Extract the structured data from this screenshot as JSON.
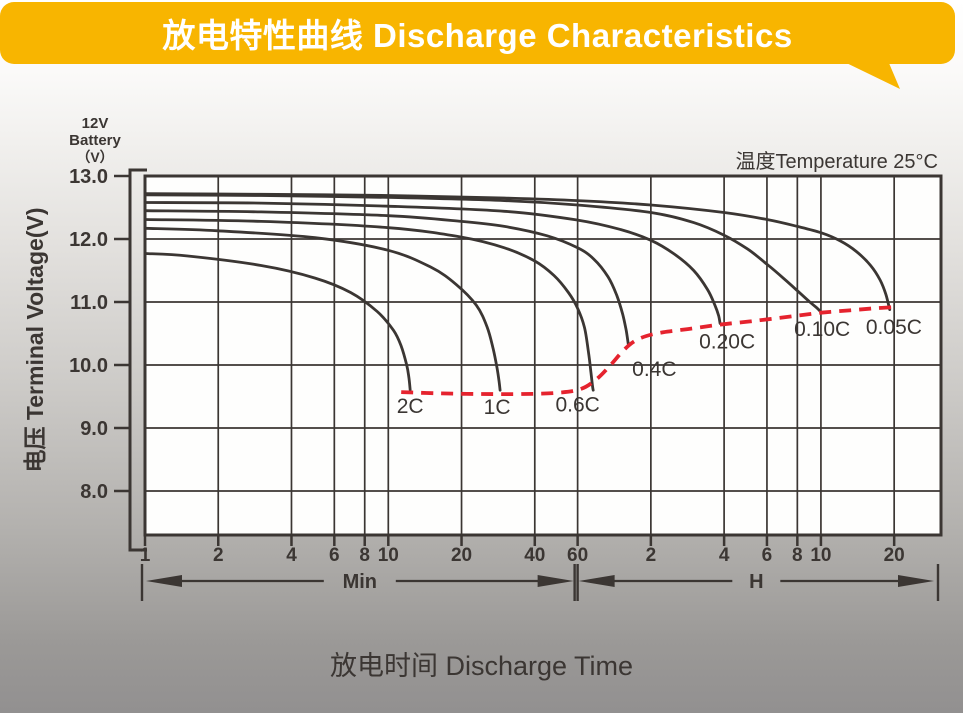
{
  "header": {
    "title": "放电特性曲线 Discharge Characteristics"
  },
  "chart": {
    "battery_label_lines": [
      "12V",
      "Battery",
      "（V）"
    ],
    "temperature_note": "温度Temperature 25°C",
    "y_axis_title": "电压 Terminal Voltage(V)",
    "x_axis_title": "放电时间 Discharge Time"
  },
  "colors": {
    "banner_yellow": "#F8B500",
    "curve_dark": "#3B3633",
    "cutoff_red": "#E5232E",
    "plot_background": "#FEFEFD",
    "text_dark": "#3B3633"
  },
  "chart_data": {
    "type": "line",
    "title": "放电特性曲线 Discharge Characteristics",
    "subtitle": "温度Temperature 25°C",
    "xlabel": "放电时间 Discharge Time",
    "ylabel": "电压 Terminal Voltage(V)",
    "x_scale": "log",
    "x_unit": "minutes",
    "x_range": [
      1,
      1870
    ],
    "y_range_top": 13.0,
    "y_range_bottom": 7.3,
    "grid": true,
    "x_unit_sections": [
      {
        "label": "Min",
        "from_minutes": 1,
        "to_minutes": 60
      },
      {
        "label": "H",
        "from_minutes": 60,
        "to_minutes": 1840
      }
    ],
    "x_ticks": [
      {
        "minutes": 1,
        "label": "1"
      },
      {
        "minutes": 2,
        "label": "2"
      },
      {
        "minutes": 4,
        "label": "4"
      },
      {
        "minutes": 6,
        "label": "6"
      },
      {
        "minutes": 8,
        "label": "8"
      },
      {
        "minutes": 10,
        "label": "10"
      },
      {
        "minutes": 20,
        "label": "20"
      },
      {
        "minutes": 40,
        "label": "40"
      },
      {
        "minutes": 60,
        "label": "60"
      },
      {
        "minutes": 120,
        "label": "2"
      },
      {
        "minutes": 240,
        "label": "4"
      },
      {
        "minutes": 360,
        "label": "6"
      },
      {
        "minutes": 480,
        "label": "8"
      },
      {
        "minutes": 600,
        "label": "10"
      },
      {
        "minutes": 1200,
        "label": "20"
      }
    ],
    "y_ticks": [
      {
        "value": 13.0,
        "label": "13.0"
      },
      {
        "value": 12.0,
        "label": "12.0"
      },
      {
        "value": 11.0,
        "label": "11.0"
      },
      {
        "value": 10.0,
        "label": "10.0"
      },
      {
        "value": 9.0,
        "label": "9.0"
      },
      {
        "value": 8.0,
        "label": "8.0"
      }
    ],
    "y_gridlines": [
      12.0,
      11.0,
      10.0,
      9.0,
      8.0
    ],
    "series": [
      {
        "name": "0.05C",
        "label": "0.05C",
        "label_anchor_minutes": 1197,
        "label_anchor_volts": 10.6,
        "points": [
          [
            1,
            12.72
          ],
          [
            3,
            12.71
          ],
          [
            10,
            12.69
          ],
          [
            30,
            12.65
          ],
          [
            60,
            12.61
          ],
          [
            120,
            12.54
          ],
          [
            240,
            12.42
          ],
          [
            360,
            12.31
          ],
          [
            480,
            12.2
          ],
          [
            600,
            12.1
          ],
          [
            720,
            11.97
          ],
          [
            840,
            11.8
          ],
          [
            960,
            11.58
          ],
          [
            1050,
            11.35
          ],
          [
            1110,
            11.12
          ],
          [
            1150,
            10.88
          ]
        ]
      },
      {
        "name": "0.10C",
        "label": "0.10C",
        "label_anchor_minutes": 607,
        "label_anchor_volts": 10.57,
        "points": [
          [
            1,
            12.7
          ],
          [
            3,
            12.69
          ],
          [
            10,
            12.66
          ],
          [
            30,
            12.61
          ],
          [
            60,
            12.54
          ],
          [
            120,
            12.42
          ],
          [
            180,
            12.26
          ],
          [
            240,
            12.06
          ],
          [
            300,
            11.84
          ],
          [
            360,
            11.6
          ],
          [
            420,
            11.38
          ],
          [
            480,
            11.18
          ],
          [
            540,
            11.0
          ],
          [
            580,
            10.9
          ],
          [
            600,
            10.84
          ]
        ]
      },
      {
        "name": "0.20C",
        "label": "0.20C",
        "label_anchor_minutes": 247,
        "label_anchor_volts": 10.37,
        "points": [
          [
            1,
            12.58
          ],
          [
            3,
            12.57
          ],
          [
            10,
            12.52
          ],
          [
            30,
            12.44
          ],
          [
            60,
            12.3
          ],
          [
            90,
            12.15
          ],
          [
            120,
            11.98
          ],
          [
            150,
            11.76
          ],
          [
            180,
            11.5
          ],
          [
            205,
            11.2
          ],
          [
            220,
            10.95
          ],
          [
            228,
            10.78
          ],
          [
            231,
            10.66
          ]
        ]
      },
      {
        "name": "0.4C",
        "label": "0.4C",
        "label_anchor_minutes": 124,
        "label_anchor_volts": 9.94,
        "points": [
          [
            1,
            12.45
          ],
          [
            3,
            12.43
          ],
          [
            10,
            12.37
          ],
          [
            20,
            12.28
          ],
          [
            30,
            12.2
          ],
          [
            45,
            12.05
          ],
          [
            60,
            11.86
          ],
          [
            70,
            11.68
          ],
          [
            80,
            11.4
          ],
          [
            87,
            11.1
          ],
          [
            92,
            10.8
          ],
          [
            95,
            10.55
          ],
          [
            97,
            10.32
          ]
        ]
      },
      {
        "name": "0.6C",
        "label": "0.6C",
        "label_anchor_minutes": 60,
        "label_anchor_volts": 9.37,
        "points": [
          [
            1,
            12.31
          ],
          [
            3,
            12.28
          ],
          [
            10,
            12.18
          ],
          [
            20,
            12.03
          ],
          [
            30,
            11.86
          ],
          [
            40,
            11.65
          ],
          [
            48,
            11.42
          ],
          [
            55,
            11.15
          ],
          [
            60,
            10.9
          ],
          [
            64,
            10.6
          ],
          [
            66.5,
            10.2
          ],
          [
            68,
            9.9
          ],
          [
            69,
            9.68
          ],
          [
            69.5,
            9.6
          ]
        ]
      },
      {
        "name": "1C",
        "label": "1C",
        "label_anchor_minutes": 28,
        "label_anchor_volts": 9.33,
        "points": [
          [
            1,
            12.17
          ],
          [
            2,
            12.13
          ],
          [
            5,
            12.02
          ],
          [
            10,
            11.82
          ],
          [
            15,
            11.55
          ],
          [
            19,
            11.28
          ],
          [
            23,
            10.95
          ],
          [
            25.5,
            10.6
          ],
          [
            27,
            10.25
          ],
          [
            28,
            9.95
          ],
          [
            28.5,
            9.75
          ],
          [
            28.8,
            9.6
          ]
        ]
      },
      {
        "name": "2C",
        "label": "2C",
        "label_anchor_minutes": 12.3,
        "label_anchor_volts": 9.35,
        "points": [
          [
            1,
            11.77
          ],
          [
            1.5,
            11.73
          ],
          [
            3,
            11.58
          ],
          [
            5,
            11.38
          ],
          [
            7,
            11.15
          ],
          [
            9,
            10.85
          ],
          [
            10.5,
            10.55
          ],
          [
            11.3,
            10.3
          ],
          [
            11.9,
            10.0
          ],
          [
            12.15,
            9.8
          ],
          [
            12.3,
            9.6
          ]
        ]
      }
    ],
    "cutoff_line": {
      "name": "discharge-end-voltage",
      "style": "dashed",
      "points": [
        [
          11.3,
          9.57
        ],
        [
          16,
          9.55
        ],
        [
          24,
          9.54
        ],
        [
          36,
          9.54
        ],
        [
          50,
          9.56
        ],
        [
          62,
          9.62
        ],
        [
          72,
          9.78
        ],
        [
          82,
          10.0
        ],
        [
          92,
          10.22
        ],
        [
          102,
          10.37
        ],
        [
          115,
          10.46
        ],
        [
          135,
          10.52
        ],
        [
          170,
          10.57
        ],
        [
          230,
          10.64
        ],
        [
          320,
          10.7
        ],
        [
          450,
          10.77
        ],
        [
          600,
          10.83
        ],
        [
          800,
          10.87
        ],
        [
          1000,
          10.9
        ],
        [
          1220,
          10.92
        ]
      ]
    },
    "legend_position": "none"
  }
}
